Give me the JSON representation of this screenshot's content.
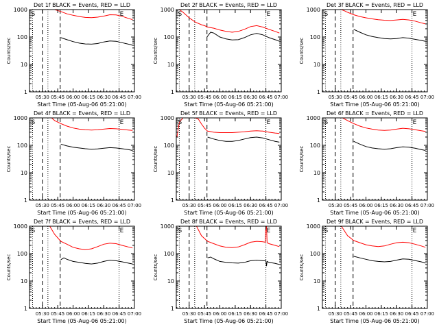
{
  "colors": {
    "background": "#ffffff",
    "events": "#000000",
    "lld": "#ff0000"
  },
  "chart_data": [
    {
      "type": "line",
      "title": "Det 1f BLACK = Events, RED = LLD",
      "xlabel": "Start Time (05-Aug-06 05:21:00)",
      "ylabel": "Counts/sec",
      "xlim": [
        5.29,
        7.0
      ],
      "ylim": [
        1,
        1000
      ],
      "yscale": "log",
      "x_tick_labels": [
        "05:30",
        "05:45",
        "06:00",
        "06:15",
        "06:30",
        "06:45",
        "07:00"
      ],
      "y_tick_labels": [
        "1",
        "10",
        "100",
        "1000"
      ],
      "markers": {
        "start_label": "S",
        "end_label": "E",
        "dotted_lines": [
          5.34,
          5.59,
          6.75
        ],
        "dashed_lines": [
          5.5,
          5.79
        ]
      },
      "series": [
        {
          "name": "Events",
          "x": [
            5.8,
            5.9,
            6.0,
            6.1,
            6.2,
            6.3,
            6.4,
            6.5,
            6.6,
            6.7,
            6.8,
            6.9,
            6.97
          ],
          "y": [
            95,
            80,
            68,
            60,
            56,
            55,
            58,
            66,
            72,
            70,
            62,
            55,
            50
          ]
        },
        {
          "name": "LLD",
          "x": [
            5.32,
            5.4,
            5.5,
            5.6,
            5.7,
            5.8,
            5.9,
            6.0,
            6.1,
            6.2,
            6.3,
            6.4,
            6.5,
            6.6,
            6.7,
            6.8,
            6.9,
            6.97
          ],
          "y": [
            1000,
            1000,
            1000,
            1000,
            1000,
            850,
            700,
            620,
            560,
            520,
            510,
            530,
            580,
            650,
            640,
            570,
            480,
            430
          ]
        }
      ]
    },
    {
      "type": "line",
      "title": "Det 2f BLACK = Events, RED = LLD",
      "xlabel": "Start Time (05-Aug-06 05:21:00)",
      "ylabel": "Counts/sec",
      "xlim": [
        5.29,
        7.0
      ],
      "ylim": [
        1,
        1000
      ],
      "yscale": "log",
      "x_tick_labels": [
        "05:30",
        "05:45",
        "06:00",
        "06:15",
        "06:30",
        "06:45",
        "07:00"
      ],
      "y_tick_labels": [
        "1",
        "10",
        "100",
        "1000"
      ],
      "markers": {
        "start_label": "S",
        "end_label": "E",
        "dotted_lines": [
          5.34,
          5.59,
          6.75
        ],
        "dashed_lines": [
          5.5,
          5.79
        ]
      },
      "series": [
        {
          "name": "Events",
          "x": [
            5.79,
            5.85,
            5.9,
            6.0,
            6.1,
            6.2,
            6.3,
            6.4,
            6.5,
            6.6,
            6.7,
            6.8,
            6.9,
            6.97
          ],
          "y": [
            100,
            150,
            140,
            100,
            85,
            78,
            80,
            95,
            120,
            135,
            120,
            95,
            80,
            70
          ]
        },
        {
          "name": "LLD",
          "x": [
            5.34,
            5.4,
            5.5,
            5.6,
            5.7,
            5.75,
            5.8,
            5.9,
            6.0,
            6.1,
            6.2,
            6.3,
            6.4,
            6.5,
            6.6,
            6.7,
            6.8,
            6.9,
            6.97
          ],
          "y": [
            1000,
            800,
            500,
            350,
            280,
            260,
            230,
            210,
            180,
            160,
            150,
            160,
            190,
            240,
            260,
            230,
            190,
            160,
            140
          ]
        }
      ]
    },
    {
      "type": "line",
      "title": "Det 3f BLACK = Events, RED = LLD",
      "xlabel": "Start Time (05-Aug-06 05:21:00)",
      "ylabel": "Counts/sec",
      "xlim": [
        5.29,
        7.0
      ],
      "ylim": [
        1,
        1000
      ],
      "yscale": "log",
      "x_tick_labels": [
        "05:30",
        "05:45",
        "06:00",
        "06:15",
        "06:30",
        "06:45",
        "07:00"
      ],
      "y_tick_labels": [
        "1",
        "10",
        "100",
        "1000"
      ],
      "markers": {
        "start_label": "S",
        "end_label": "E",
        "dotted_lines": [
          5.34,
          5.59,
          6.75
        ],
        "dashed_lines": [
          5.5,
          5.79
        ]
      },
      "series": [
        {
          "name": "Events",
          "x": [
            5.8,
            5.9,
            6.0,
            6.1,
            6.2,
            6.3,
            6.4,
            6.5,
            6.6,
            6.7,
            6.8,
            6.9,
            6.97
          ],
          "y": [
            190,
            150,
            120,
            105,
            95,
            88,
            85,
            88,
            95,
            90,
            82,
            75,
            70
          ]
        },
        {
          "name": "LLD",
          "x": [
            5.6,
            5.65,
            5.7,
            5.8,
            5.9,
            6.0,
            6.1,
            6.2,
            6.3,
            6.4,
            6.5,
            6.6,
            6.7,
            6.8,
            6.9,
            6.97
          ],
          "y": [
            1000,
            900,
            800,
            650,
            560,
            500,
            460,
            430,
            410,
            400,
            420,
            440,
            420,
            380,
            330,
            300
          ]
        }
      ]
    },
    {
      "type": "line",
      "title": "Det 4f BLACK = Events, RED = LLD",
      "xlabel": "Start Time (05-Aug-06 05:21:00)",
      "ylabel": "Counts/sec",
      "xlim": [
        5.29,
        7.0
      ],
      "ylim": [
        1,
        1000
      ],
      "yscale": "log",
      "x_tick_labels": [
        "05:30",
        "05:45",
        "06:00",
        "06:15",
        "06:30",
        "06:45",
        "07:00"
      ],
      "y_tick_labels": [
        "1",
        "10",
        "100",
        "1000"
      ],
      "markers": {
        "start_label": "S",
        "end_label": "E",
        "dotted_lines": [
          5.34,
          5.59,
          6.75
        ],
        "dashed_lines": [
          5.5,
          5.79
        ]
      },
      "series": [
        {
          "name": "Events",
          "x": [
            5.8,
            5.9,
            6.0,
            6.1,
            6.2,
            6.3,
            6.4,
            6.5,
            6.6,
            6.7,
            6.8,
            6.9,
            6.97
          ],
          "y": [
            110,
            95,
            85,
            80,
            75,
            72,
            74,
            78,
            82,
            80,
            75,
            70,
            65
          ]
        },
        {
          "name": "LLD",
          "x": [
            5.65,
            5.7,
            5.8,
            5.9,
            6.0,
            6.1,
            6.2,
            6.3,
            6.4,
            6.5,
            6.6,
            6.7,
            6.8,
            6.9,
            6.97
          ],
          "y": [
            1000,
            800,
            620,
            500,
            430,
            390,
            370,
            360,
            370,
            390,
            410,
            400,
            380,
            360,
            350
          ]
        }
      ]
    },
    {
      "type": "line",
      "title": "Det 5f BLACK = Events, RED = LLD",
      "xlabel": "Start Time (05-Aug-06 05:21:00)",
      "ylabel": "Counts/sec",
      "xlim": [
        5.29,
        7.0
      ],
      "ylim": [
        1,
        1000
      ],
      "yscale": "log",
      "x_tick_labels": [
        "05:30",
        "05:45",
        "06:00",
        "06:15",
        "06:30",
        "06:45",
        "07:00"
      ],
      "y_tick_labels": [
        "1",
        "10",
        "100",
        "1000"
      ],
      "markers": {
        "start_label": "S",
        "end_label": "E",
        "dotted_lines": [
          5.34,
          5.59,
          6.75
        ],
        "dashed_lines": [
          5.5,
          5.79
        ]
      },
      "series": [
        {
          "name": "Events",
          "x": [
            5.8,
            5.9,
            6.0,
            6.1,
            6.2,
            6.3,
            6.4,
            6.5,
            6.6,
            6.7,
            6.8,
            6.9,
            6.97
          ],
          "y": [
            200,
            170,
            150,
            140,
            140,
            150,
            170,
            190,
            200,
            185,
            160,
            140,
            130
          ]
        },
        {
          "name": "LLD",
          "x": [
            5.3,
            5.34,
            5.4,
            5.45,
            5.5,
            5.55,
            5.6,
            5.65,
            5.7,
            5.75,
            5.8,
            5.9,
            6.0,
            6.1,
            6.2,
            6.3,
            6.4,
            6.5,
            6.6,
            6.7,
            6.8,
            6.9,
            6.97
          ],
          "y": [
            200,
            700,
            1000,
            1000,
            1000,
            1000,
            1000,
            900,
            600,
            420,
            330,
            300,
            290,
            290,
            290,
            300,
            310,
            330,
            340,
            330,
            300,
            280,
            270
          ]
        }
      ]
    },
    {
      "type": "line",
      "title": "Det 6f BLACK = Events, RED = LLD",
      "xlabel": "Start Time (05-Aug-06 05:21:00)",
      "ylabel": "Counts/sec",
      "xlim": [
        5.29,
        7.0
      ],
      "ylim": [
        1,
        1000
      ],
      "yscale": "log",
      "x_tick_labels": [
        "05:30",
        "05:45",
        "06:00",
        "06:15",
        "06:30",
        "06:45",
        "07:00"
      ],
      "y_tick_labels": [
        "1",
        "10",
        "100",
        "1000"
      ],
      "markers": {
        "start_label": "S",
        "end_label": "E",
        "dotted_lines": [
          5.34,
          5.59,
          6.75
        ],
        "dashed_lines": [
          5.5,
          5.79
        ]
      },
      "series": [
        {
          "name": "Events",
          "x": [
            5.8,
            5.9,
            6.0,
            6.1,
            6.2,
            6.3,
            6.4,
            6.5,
            6.6,
            6.7,
            6.8,
            6.9,
            6.97
          ],
          "y": [
            140,
            110,
            90,
            80,
            75,
            72,
            75,
            82,
            88,
            85,
            78,
            70,
            65
          ]
        },
        {
          "name": "LLD",
          "x": [
            5.62,
            5.7,
            5.8,
            5.9,
            6.0,
            6.1,
            6.2,
            6.3,
            6.4,
            6.5,
            6.6,
            6.7,
            6.8,
            6.9,
            6.97
          ],
          "y": [
            1000,
            800,
            620,
            500,
            430,
            390,
            360,
            350,
            360,
            390,
            420,
            400,
            370,
            340,
            320
          ]
        }
      ]
    },
    {
      "type": "line",
      "title": "Det 7f BLACK = Events, RED = LLD",
      "xlabel": "Start Time (05-Aug-06 05:21:00)",
      "ylabel": "Counts/sec",
      "xlim": [
        5.29,
        7.0
      ],
      "ylim": [
        1,
        1000
      ],
      "yscale": "log",
      "x_tick_labels": [
        "05:30",
        "05:45",
        "06:00",
        "06:15",
        "06:30",
        "06:45",
        "07:00"
      ],
      "y_tick_labels": [
        "1",
        "10",
        "100",
        "1000"
      ],
      "markers": {
        "start_label": "S",
        "end_label": "E",
        "dotted_lines": [
          5.34,
          5.59,
          6.75
        ],
        "dashed_lines": [
          5.5,
          5.79
        ]
      },
      "series": [
        {
          "name": "Events",
          "x": [
            5.8,
            5.85,
            5.9,
            6.0,
            6.1,
            6.2,
            6.3,
            6.4,
            6.5,
            6.6,
            6.7,
            6.8,
            6.9,
            6.97
          ],
          "y": [
            60,
            70,
            62,
            52,
            48,
            44,
            42,
            45,
            52,
            58,
            55,
            50,
            45,
            42
          ]
        },
        {
          "name": "LLD",
          "x": [
            5.62,
            5.7,
            5.8,
            5.9,
            6.0,
            6.1,
            6.2,
            6.3,
            6.4,
            6.5,
            6.6,
            6.7,
            6.8,
            6.9,
            6.97
          ],
          "y": [
            1000,
            500,
            280,
            220,
            170,
            150,
            140,
            150,
            180,
            220,
            240,
            230,
            200,
            175,
            160
          ]
        }
      ]
    },
    {
      "type": "line",
      "title": "Det 8f BLACK = Events, RED = LLD",
      "xlabel": "Start Time (05-Aug-06 05:21:00)",
      "ylabel": "Counts/sec",
      "xlim": [
        5.29,
        7.0
      ],
      "ylim": [
        1,
        1000
      ],
      "yscale": "log",
      "x_tick_labels": [
        "05:30",
        "05:45",
        "06:00",
        "06:15",
        "06:30",
        "06:45",
        "07:00"
      ],
      "y_tick_labels": [
        "1",
        "10",
        "100",
        "1000"
      ],
      "markers": {
        "start_label": "S",
        "end_label": "E",
        "dotted_lines": [
          5.34,
          5.59,
          6.75
        ],
        "dashed_lines": [
          5.5,
          5.79
        ]
      },
      "series": [
        {
          "name": "Events",
          "x": [
            5.8,
            5.85,
            5.9,
            6.0,
            6.1,
            6.2,
            6.3,
            6.4,
            6.5,
            6.6,
            6.7,
            6.75,
            6.76,
            6.77,
            6.8,
            6.9,
            6.97
          ],
          "y": [
            70,
            75,
            65,
            52,
            48,
            46,
            45,
            48,
            55,
            58,
            55,
            55,
            35,
            52,
            48,
            44,
            40
          ]
        },
        {
          "name": "LLD",
          "x": [
            5.62,
            5.7,
            5.8,
            5.9,
            6.0,
            6.1,
            6.2,
            6.3,
            6.4,
            6.5,
            6.6,
            6.7,
            6.74,
            6.75,
            6.76,
            6.77,
            6.8,
            6.9,
            6.97
          ],
          "y": [
            1000,
            450,
            280,
            230,
            190,
            170,
            165,
            175,
            210,
            260,
            280,
            270,
            260,
            1000,
            1000,
            250,
            230,
            200,
            180
          ]
        }
      ]
    },
    {
      "type": "line",
      "title": "Det 9f BLACK = Events, RED = LLD",
      "xlabel": "Start Time (05-Aug-06 05:21:00)",
      "ylabel": "Counts/sec",
      "xlim": [
        5.29,
        7.0
      ],
      "ylim": [
        1,
        1000
      ],
      "yscale": "log",
      "x_tick_labels": [
        "05:30",
        "05:45",
        "06:00",
        "06:15",
        "06:30",
        "06:45",
        "07:00"
      ],
      "y_tick_labels": [
        "1",
        "10",
        "100",
        "1000"
      ],
      "markers": {
        "start_label": "S",
        "end_label": "E",
        "dotted_lines": [
          5.34,
          5.59,
          6.75
        ],
        "dashed_lines": [
          5.5,
          5.79
        ]
      },
      "series": [
        {
          "name": "Events",
          "x": [
            5.8,
            5.9,
            6.0,
            6.1,
            6.2,
            6.3,
            6.4,
            6.5,
            6.6,
            6.7,
            6.8,
            6.9,
            6.97
          ],
          "y": [
            80,
            70,
            62,
            55,
            52,
            50,
            52,
            58,
            64,
            62,
            56,
            50,
            45
          ]
        },
        {
          "name": "LLD",
          "x": [
            5.6,
            5.7,
            5.8,
            5.9,
            6.0,
            6.1,
            6.2,
            6.3,
            6.4,
            6.5,
            6.6,
            6.7,
            6.8,
            6.9,
            6.97
          ],
          "y": [
            1000,
            450,
            300,
            250,
            210,
            190,
            180,
            190,
            220,
            250,
            260,
            250,
            220,
            190,
            170
          ]
        }
      ]
    }
  ]
}
